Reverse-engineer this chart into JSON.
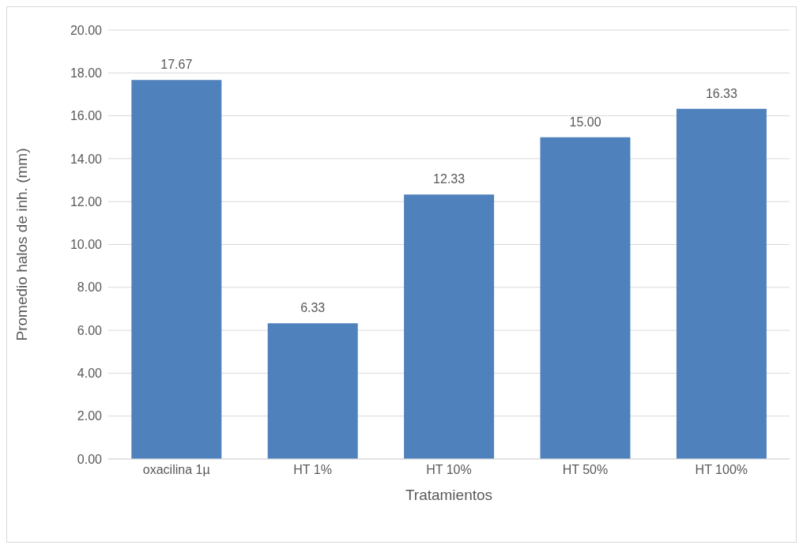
{
  "chart_data": {
    "type": "bar",
    "xlabel": "Tratamientos",
    "ylabel": "Promedio halos de inh. (mm)",
    "categories": [
      "oxacilina 1µ",
      "HT 1%",
      "HT 10%",
      "HT 50%",
      "HT 100%"
    ],
    "values": [
      17.67,
      6.33,
      12.33,
      15.0,
      16.33
    ],
    "value_labels": [
      "17.67",
      "6.33",
      "12.33",
      "15.00",
      "16.33"
    ],
    "color": "#4f81bd",
    "ylim": [
      0,
      20
    ],
    "yticks": [
      {
        "value": 0,
        "label": "0.00"
      },
      {
        "value": 2,
        "label": "2.00"
      },
      {
        "value": 4,
        "label": "4.00"
      },
      {
        "value": 6,
        "label": "6.00"
      },
      {
        "value": 8,
        "label": "8.00"
      },
      {
        "value": 10,
        "label": "10.00"
      },
      {
        "value": 12,
        "label": "12.00"
      },
      {
        "value": 14,
        "label": "14.00"
      },
      {
        "value": 16,
        "label": "16.00"
      },
      {
        "value": 18,
        "label": "18.00"
      },
      {
        "value": 20,
        "label": "20.00"
      }
    ],
    "grid": "y"
  }
}
